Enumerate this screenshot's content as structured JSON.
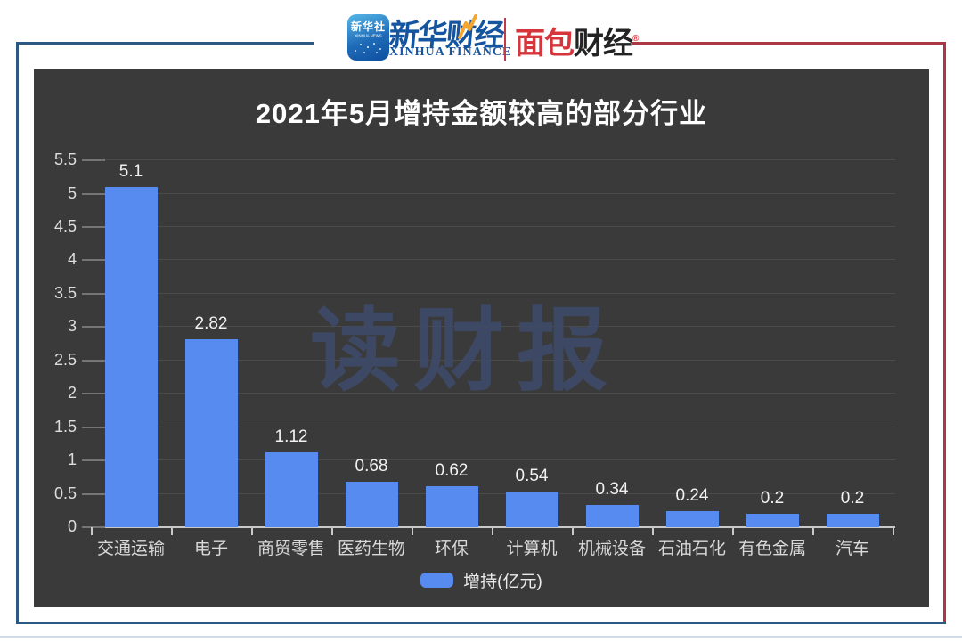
{
  "header": {
    "agency_badge": {
      "title": "新华社",
      "subtitle": "XINHUA NEWS"
    },
    "finance_logo": {
      "cn": "新华财经",
      "en": "XINHUA FINANCE"
    },
    "bread_logo": {
      "part1": "面包",
      "part2": "财经",
      "mark": "®"
    }
  },
  "chart_data": {
    "type": "bar",
    "title": "2021年5月增持金额较高的部分行业",
    "categories": [
      "交通运输",
      "电子",
      "商贸零售",
      "医药生物",
      "环保",
      "计算机",
      "机械设备",
      "石油石化",
      "有色金属",
      "汽车"
    ],
    "values": [
      5.1,
      2.82,
      1.12,
      0.68,
      0.62,
      0.54,
      0.34,
      0.24,
      0.2,
      0.2
    ],
    "value_labels": [
      "5.1",
      "2.82",
      "1.12",
      "0.68",
      "0.62",
      "0.54",
      "0.34",
      "0.24",
      "0.2",
      "0.2"
    ],
    "series_name": "增持(亿元)",
    "legend": {
      "label": "增持(亿元)",
      "position": "bottom-center"
    },
    "ylim": [
      0,
      5.5
    ],
    "yticks": [
      "0",
      "0.5",
      "1",
      "1.5",
      "2",
      "2.5",
      "3",
      "3.5",
      "4",
      "4.5",
      "5",
      "5.5"
    ],
    "xlabel": "",
    "ylabel": "",
    "grid": true,
    "watermark": "读财报"
  },
  "colors": {
    "bar": "#578bef",
    "panel_bg": "#3a3a3a",
    "frame_blue": "#2d5882",
    "frame_red": "#a93744",
    "xinhua_blue": "#15549f",
    "bread_red": "#d6353b",
    "accent_orange": "#f6a62d",
    "watermark": "#3e4b68"
  }
}
